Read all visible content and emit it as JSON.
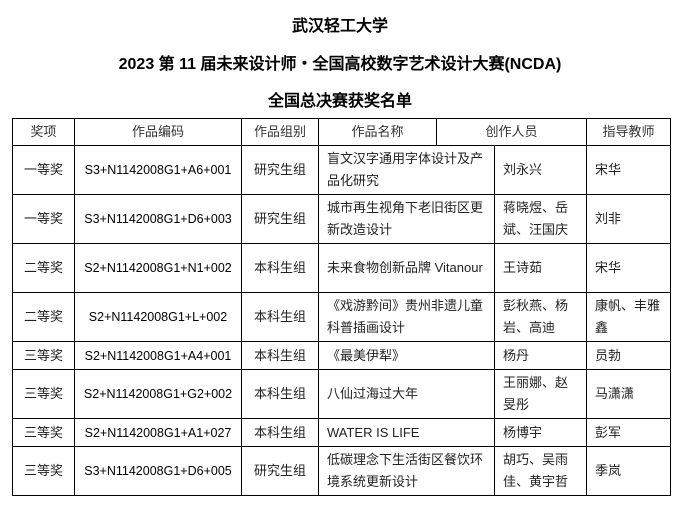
{
  "titles": [
    "武汉轻工大学",
    "2023 第 11 届未来设计师・全国高校数字艺术设计大赛(NCDA)",
    "全国总决赛获奖名单"
  ],
  "headers": [
    "奖项",
    "作品编码",
    "作品组别",
    "作品名称",
    "创作人员",
    "指导教师"
  ],
  "rows": [
    {
      "award": "一等奖",
      "code": "S3+N1142008G1+A6+001",
      "group": "研究生组",
      "title": "盲文汉字通用字体设计及产品化研究",
      "authors": "刘永兴",
      "advisor": "宋华"
    },
    {
      "award": "一等奖",
      "code": "S3+N1142008G1+D6+003",
      "group": "研究生组",
      "title": "城市再生视角下老旧街区更新改造设计",
      "authors": "蒋晓煜、岳斌、汪国庆",
      "advisor": "刘非"
    },
    {
      "award": "二等奖",
      "code": "S2+N1142008G1+N1+002",
      "group": "本科生组",
      "title": "未来食物创新品牌 Vitanour",
      "authors": "王诗茹",
      "advisor": "宋华"
    },
    {
      "award": "二等奖",
      "code": "S2+N1142008G1+L+002",
      "group": "本科生组",
      "title": "《戏游黔间》贵州非遗儿童科普插画设计",
      "authors": "彭秋燕、杨岩、高迪",
      "advisor": "康帆、丰雅鑫"
    },
    {
      "award": "三等奖",
      "code": "S2+N1142008G1+A4+001",
      "group": "本科生组",
      "title": "《最美伊犁》",
      "authors": "杨丹",
      "advisor": "员勃"
    },
    {
      "award": "三等奖",
      "code": "S2+N1142008G1+G2+002",
      "group": "本科生组",
      "title": "八仙过海过大年",
      "authors": "王丽娜、赵旻彤",
      "advisor": "马潇潇"
    },
    {
      "award": "三等奖",
      "code": "S2+N1142008G1+A1+027",
      "group": "本科生组",
      "title": "WATER IS LIFE",
      "authors": "杨博宇",
      "advisor": "彭军"
    },
    {
      "award": "三等奖",
      "code": "S3+N1142008G1+D6+005",
      "group": "研究生组",
      "title": "低碳理念下生活街区餐饮环境系统更新设计",
      "authors": "胡巧、吴雨佳、黄宇哲",
      "advisor": "季岚"
    }
  ]
}
